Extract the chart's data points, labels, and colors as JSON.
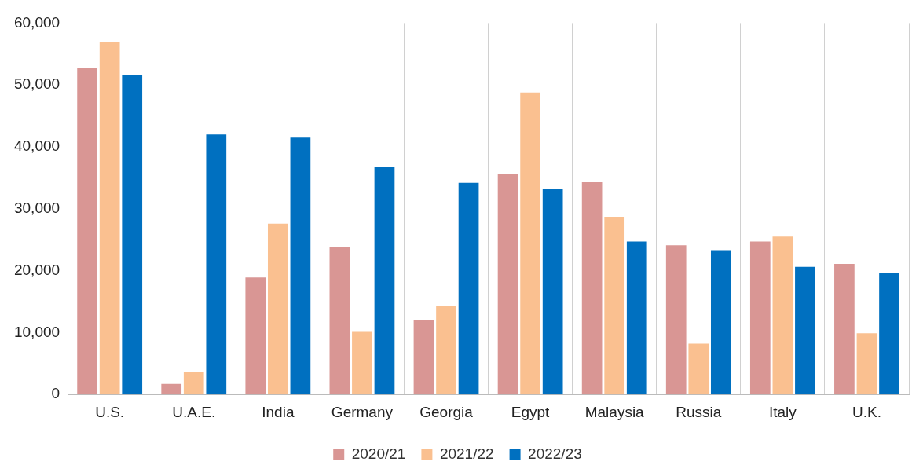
{
  "chart_data": {
    "type": "bar",
    "categories": [
      "U.S.",
      "U.A.E.",
      "India",
      "Germany",
      "Georgia",
      "Egypt",
      "Malaysia",
      "Russia",
      "Italy",
      "U.K."
    ],
    "series": [
      {
        "name": "2020/21",
        "color": "#d99694",
        "values": [
          52700,
          1700,
          18900,
          23800,
          12000,
          35600,
          34300,
          24100,
          24700,
          21100
        ]
      },
      {
        "name": "2021/22",
        "color": "#fac090",
        "values": [
          57000,
          3600,
          27600,
          10100,
          14300,
          48800,
          28700,
          8200,
          25500,
          9900
        ]
      },
      {
        "name": "2022/23",
        "color": "#0070c0",
        "values": [
          51600,
          42000,
          41500,
          36700,
          34200,
          33200,
          24700,
          23300,
          20600,
          19600
        ]
      }
    ],
    "ylim": [
      0,
      60000
    ],
    "yticks": [
      0,
      {
        "value": 10000,
        "label": "10,000"
      },
      {
        "value": 20000,
        "label": "20,000"
      },
      {
        "value": 30000,
        "label": "30,000"
      },
      {
        "value": 40000,
        "label": "40,000"
      },
      {
        "value": 50000,
        "label": "50,000"
      },
      {
        "value": 60000,
        "label": "60,000"
      }
    ],
    "grid": "x",
    "legend": "bottom"
  }
}
